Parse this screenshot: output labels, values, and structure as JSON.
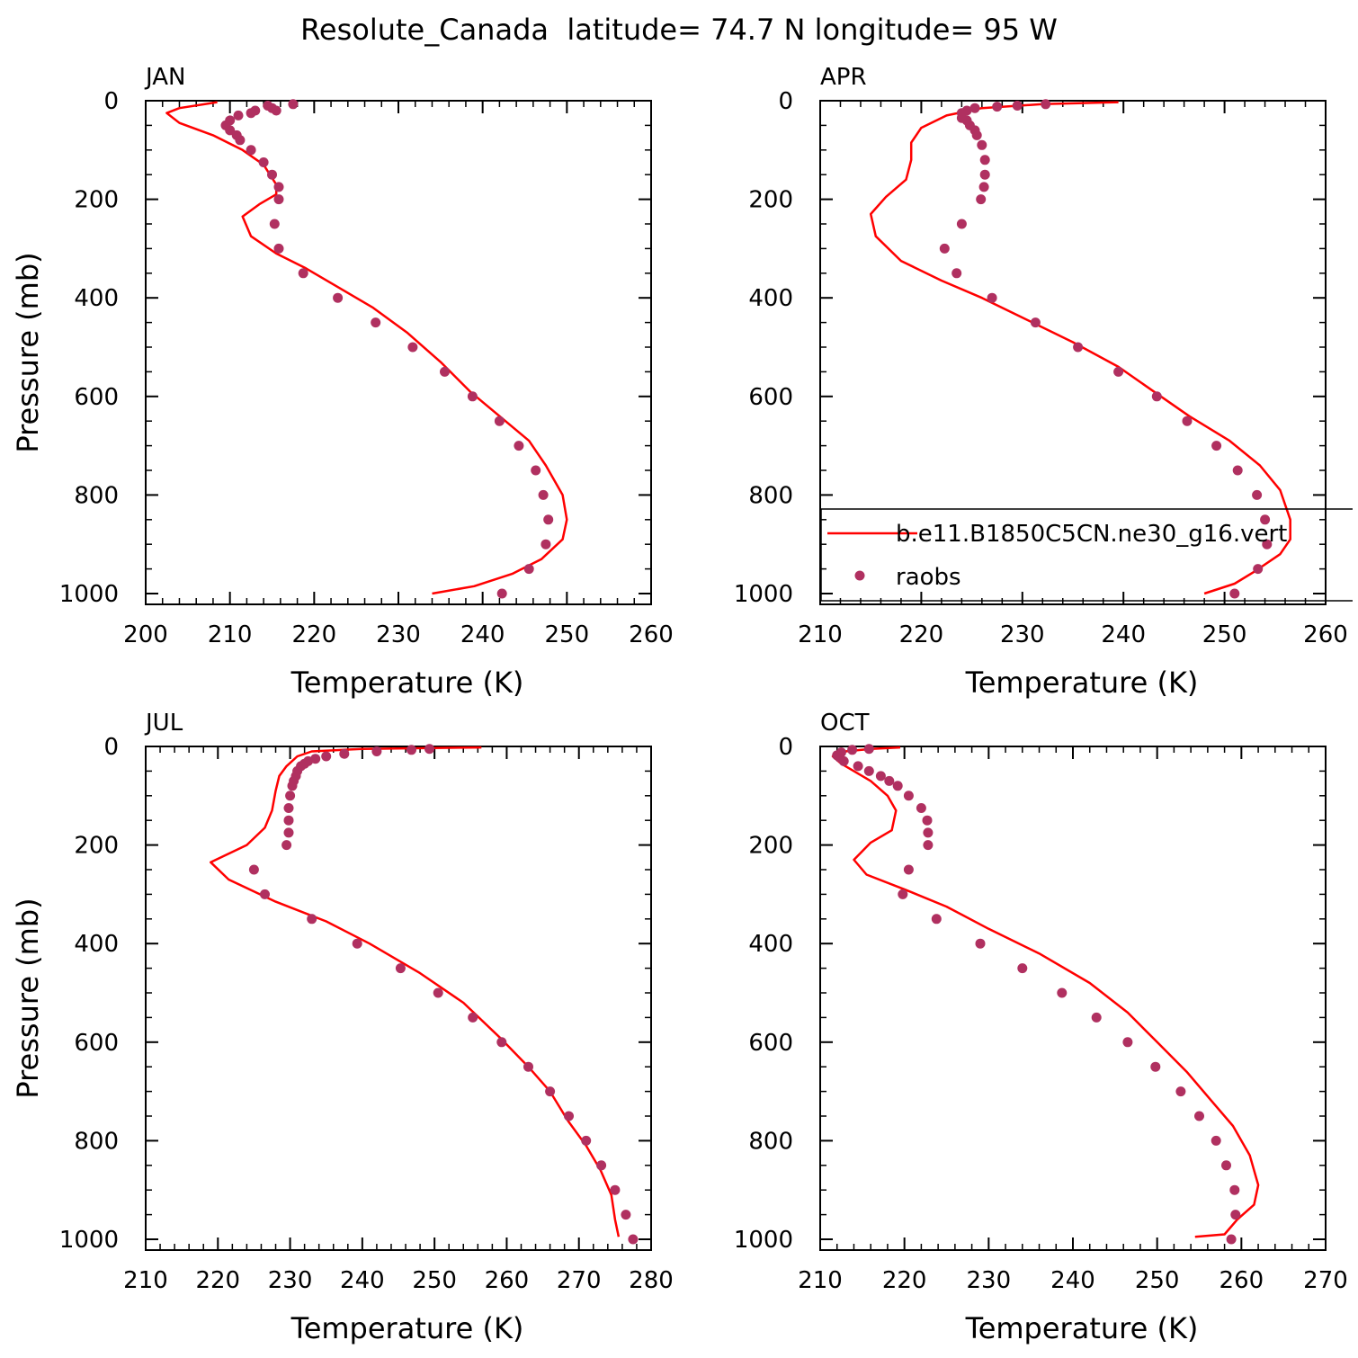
{
  "figure": {
    "title": "Resolute_Canada  latitude= 74.7 N longitude= 95 W",
    "legend": {
      "model_label": "b.e11.B1850C5CN.ne30_g16.vert",
      "obs_label": "raobs",
      "placement": "lower-right of APR panel",
      "model_color": "#ff0000",
      "obs_color": "#b03060"
    }
  },
  "chart_data": [
    {
      "type": "line",
      "panel": "JAN",
      "xlabel": "Temperature (K)",
      "ylabel": "Pressure (mb)",
      "xlim": [
        200,
        260
      ],
      "ylim": [
        1000,
        0
      ],
      "xticks": [
        200,
        210,
        220,
        230,
        240,
        250,
        260
      ],
      "yticks": [
        0,
        200,
        400,
        600,
        800,
        1000
      ],
      "series": [
        {
          "name": "b.e11.B1850C5CN.ne30_g16.vert",
          "style": "line",
          "points": [
            [
              208.5,
              3
            ],
            [
              204,
              15
            ],
            [
              202.5,
              25
            ],
            [
              204,
              45
            ],
            [
              208,
              70
            ],
            [
              211.5,
              100
            ],
            [
              214,
              130
            ],
            [
              215.5,
              170
            ],
            [
              215.5,
              190
            ],
            [
              213.5,
              210
            ],
            [
              211.5,
              235
            ],
            [
              212.5,
              275
            ],
            [
              215.5,
              310
            ],
            [
              219,
              340
            ],
            [
              223,
              380
            ],
            [
              227,
              420
            ],
            [
              231,
              470
            ],
            [
              235,
              530
            ],
            [
              238.5,
              590
            ],
            [
              242,
              640
            ],
            [
              245.5,
              690
            ],
            [
              247.5,
              740
            ],
            [
              249.5,
              800
            ],
            [
              250,
              850
            ],
            [
              249.5,
              890
            ],
            [
              247,
              930
            ],
            [
              243.5,
              960
            ],
            [
              239,
              985
            ],
            [
              234,
              1000
            ]
          ]
        },
        {
          "name": "raobs",
          "style": "scatter",
          "points": [
            [
              217.5,
              7
            ],
            [
              214.5,
              10
            ],
            [
              215,
              15
            ],
            [
              213,
              20
            ],
            [
              215.5,
              20
            ],
            [
              212.5,
              25
            ],
            [
              211,
              30
            ],
            [
              210,
              40
            ],
            [
              209.5,
              50
            ],
            [
              210,
              60
            ],
            [
              210.8,
              70
            ],
            [
              211.2,
              80
            ],
            [
              212.5,
              100
            ],
            [
              214,
              125
            ],
            [
              215,
              150
            ],
            [
              215.8,
              175
            ],
            [
              215.8,
              200
            ],
            [
              215.3,
              250
            ],
            [
              215.8,
              300
            ],
            [
              218.7,
              350
            ],
            [
              222.8,
              400
            ],
            [
              227.3,
              450
            ],
            [
              231.7,
              500
            ],
            [
              235.5,
              550
            ],
            [
              238.8,
              600
            ],
            [
              242,
              650
            ],
            [
              244.3,
              700
            ],
            [
              246.3,
              750
            ],
            [
              247.2,
              800
            ],
            [
              247.8,
              850
            ],
            [
              247.5,
              900
            ],
            [
              245.5,
              950
            ],
            [
              242.3,
              1000
            ]
          ]
        }
      ]
    },
    {
      "type": "line",
      "panel": "APR",
      "xlabel": "Temperature (K)",
      "ylabel": "",
      "xlim": [
        210,
        260
      ],
      "ylim": [
        1000,
        0
      ],
      "xticks": [
        210,
        220,
        230,
        240,
        250,
        260
      ],
      "yticks": [
        0,
        200,
        400,
        600,
        800,
        1000
      ],
      "series": [
        {
          "name": "b.e11.B1850C5CN.ne30_g16.vert",
          "style": "line",
          "points": [
            [
              239.5,
              3
            ],
            [
              232,
              7
            ],
            [
              226,
              15
            ],
            [
              222.5,
              30
            ],
            [
              220,
              55
            ],
            [
              219,
              85
            ],
            [
              219,
              120
            ],
            [
              218.5,
              160
            ],
            [
              216.5,
              195
            ],
            [
              215,
              230
            ],
            [
              215.5,
              275
            ],
            [
              218,
              325
            ],
            [
              222,
              365
            ],
            [
              226,
              400
            ],
            [
              230,
              440
            ],
            [
              235,
              490
            ],
            [
              239.5,
              540
            ],
            [
              243,
              590
            ],
            [
              246.5,
              640
            ],
            [
              250.5,
              690
            ],
            [
              253.5,
              740
            ],
            [
              255.5,
              790
            ],
            [
              256.5,
              850
            ],
            [
              256.5,
              890
            ],
            [
              255.5,
              920
            ],
            [
              253,
              955
            ],
            [
              251,
              980
            ],
            [
              248,
              1000
            ]
          ]
        },
        {
          "name": "raobs",
          "style": "scatter",
          "points": [
            [
              232.3,
              7
            ],
            [
              229.5,
              10
            ],
            [
              227.5,
              12
            ],
            [
              225.3,
              15
            ],
            [
              224.5,
              20
            ],
            [
              224,
              25
            ],
            [
              224,
              35
            ],
            [
              224.5,
              40
            ],
            [
              224.8,
              50
            ],
            [
              225.3,
              60
            ],
            [
              225.5,
              70
            ],
            [
              226,
              90
            ],
            [
              226.3,
              120
            ],
            [
              226.3,
              150
            ],
            [
              226.2,
              175
            ],
            [
              225.9,
              200
            ],
            [
              224,
              250
            ],
            [
              222.3,
              300
            ],
            [
              223.5,
              350
            ],
            [
              227,
              400
            ],
            [
              231.3,
              450
            ],
            [
              235.5,
              500
            ],
            [
              239.5,
              550
            ],
            [
              243.3,
              600
            ],
            [
              246.3,
              650
            ],
            [
              249.2,
              700
            ],
            [
              251.3,
              750
            ],
            [
              253.2,
              800
            ],
            [
              254,
              850
            ],
            [
              254.2,
              900
            ],
            [
              253.3,
              950
            ],
            [
              251,
              1000
            ]
          ]
        }
      ]
    },
    {
      "type": "line",
      "panel": "JUL",
      "xlabel": "Temperature (K)",
      "ylabel": "Pressure (mb)",
      "xlim": [
        210,
        280
      ],
      "ylim": [
        1000,
        0
      ],
      "xticks": [
        210,
        220,
        230,
        240,
        250,
        260,
        270,
        280
      ],
      "yticks": [
        0,
        200,
        400,
        600,
        800,
        1000
      ],
      "series": [
        {
          "name": "b.e11.B1850C5CN.ne30_g16.vert",
          "style": "line",
          "points": [
            [
              256.5,
              2
            ],
            [
              240,
              5
            ],
            [
              233,
              10
            ],
            [
              231,
              20
            ],
            [
              229.5,
              40
            ],
            [
              228.5,
              60
            ],
            [
              228,
              90
            ],
            [
              227.5,
              130
            ],
            [
              226.5,
              165
            ],
            [
              224,
              200
            ],
            [
              219,
              235
            ],
            [
              221.5,
              270
            ],
            [
              228,
              315
            ],
            [
              235,
              355
            ],
            [
              241,
              400
            ],
            [
              248,
              460
            ],
            [
              254,
              520
            ],
            [
              259,
              590
            ],
            [
              263,
              650
            ],
            [
              266,
              700
            ],
            [
              268.5,
              760
            ],
            [
              271,
              810
            ],
            [
              273,
              860
            ],
            [
              274.5,
              910
            ],
            [
              275,
              960
            ],
            [
              275.5,
              995
            ]
          ]
        },
        {
          "name": "raobs",
          "style": "scatter",
          "points": [
            [
              249.3,
              5
            ],
            [
              246.8,
              7
            ],
            [
              242,
              10
            ],
            [
              237.5,
              15
            ],
            [
              235,
              20
            ],
            [
              233.5,
              25
            ],
            [
              232.5,
              30
            ],
            [
              232,
              35
            ],
            [
              231.5,
              40
            ],
            [
              231,
              50
            ],
            [
              230.8,
              60
            ],
            [
              230.5,
              70
            ],
            [
              230.3,
              80
            ],
            [
              230,
              100
            ],
            [
              229.8,
              125
            ],
            [
              229.8,
              150
            ],
            [
              229.8,
              175
            ],
            [
              229.5,
              200
            ],
            [
              225,
              250
            ],
            [
              226.5,
              300
            ],
            [
              233,
              350
            ],
            [
              239.3,
              400
            ],
            [
              245.3,
              450
            ],
            [
              250.5,
              500
            ],
            [
              255.3,
              550
            ],
            [
              259.3,
              600
            ],
            [
              263,
              650
            ],
            [
              266,
              700
            ],
            [
              268.6,
              750
            ],
            [
              271,
              800
            ],
            [
              273.1,
              850
            ],
            [
              275,
              900
            ],
            [
              276.5,
              950
            ],
            [
              277.5,
              1000
            ]
          ]
        }
      ]
    },
    {
      "type": "line",
      "panel": "OCT",
      "xlabel": "Temperature (K)",
      "ylabel": "",
      "xlim": [
        210,
        270
      ],
      "ylim": [
        1000,
        0
      ],
      "xticks": [
        210,
        220,
        230,
        240,
        250,
        260,
        270
      ],
      "yticks": [
        0,
        200,
        400,
        600,
        800,
        1000
      ],
      "series": [
        {
          "name": "b.e11.B1850C5CN.ne30_g16.vert",
          "style": "line",
          "points": [
            [
              219.5,
              2
            ],
            [
              216,
              5
            ],
            [
              213,
              10
            ],
            [
              211.5,
              20
            ],
            [
              212.5,
              35
            ],
            [
              214,
              50
            ],
            [
              216,
              70
            ],
            [
              218,
              100
            ],
            [
              219,
              130
            ],
            [
              218.5,
              170
            ],
            [
              216,
              195
            ],
            [
              214,
              230
            ],
            [
              215.5,
              260
            ],
            [
              220,
              290
            ],
            [
              225,
              325
            ],
            [
              230,
              370
            ],
            [
              236,
              420
            ],
            [
              242,
              480
            ],
            [
              246.5,
              540
            ],
            [
              250,
              600
            ],
            [
              253.5,
              660
            ],
            [
              256.5,
              720
            ],
            [
              259,
              770
            ],
            [
              261,
              830
            ],
            [
              262,
              890
            ],
            [
              261.5,
              930
            ],
            [
              259.5,
              960
            ],
            [
              258,
              990
            ],
            [
              254.5,
              995
            ]
          ]
        },
        {
          "name": "raobs",
          "style": "scatter",
          "points": [
            [
              215.8,
              5
            ],
            [
              213.8,
              7
            ],
            [
              212.5,
              12
            ],
            [
              212,
              18
            ],
            [
              212.3,
              22
            ],
            [
              212.8,
              30
            ],
            [
              214.5,
              40
            ],
            [
              215.8,
              50
            ],
            [
              217.2,
              60
            ],
            [
              218.2,
              70
            ],
            [
              219.2,
              80
            ],
            [
              220.5,
              100
            ],
            [
              222,
              125
            ],
            [
              222.7,
              150
            ],
            [
              222.8,
              175
            ],
            [
              222.8,
              200
            ],
            [
              220.5,
              250
            ],
            [
              219.8,
              300
            ],
            [
              223.8,
              350
            ],
            [
              229,
              400
            ],
            [
              234,
              450
            ],
            [
              238.7,
              500
            ],
            [
              242.8,
              550
            ],
            [
              246.5,
              600
            ],
            [
              249.8,
              650
            ],
            [
              252.8,
              700
            ],
            [
              255,
              750
            ],
            [
              257,
              800
            ],
            [
              258.2,
              850
            ],
            [
              259.2,
              900
            ],
            [
              259.3,
              950
            ],
            [
              258.8,
              1000
            ]
          ]
        }
      ]
    }
  ]
}
